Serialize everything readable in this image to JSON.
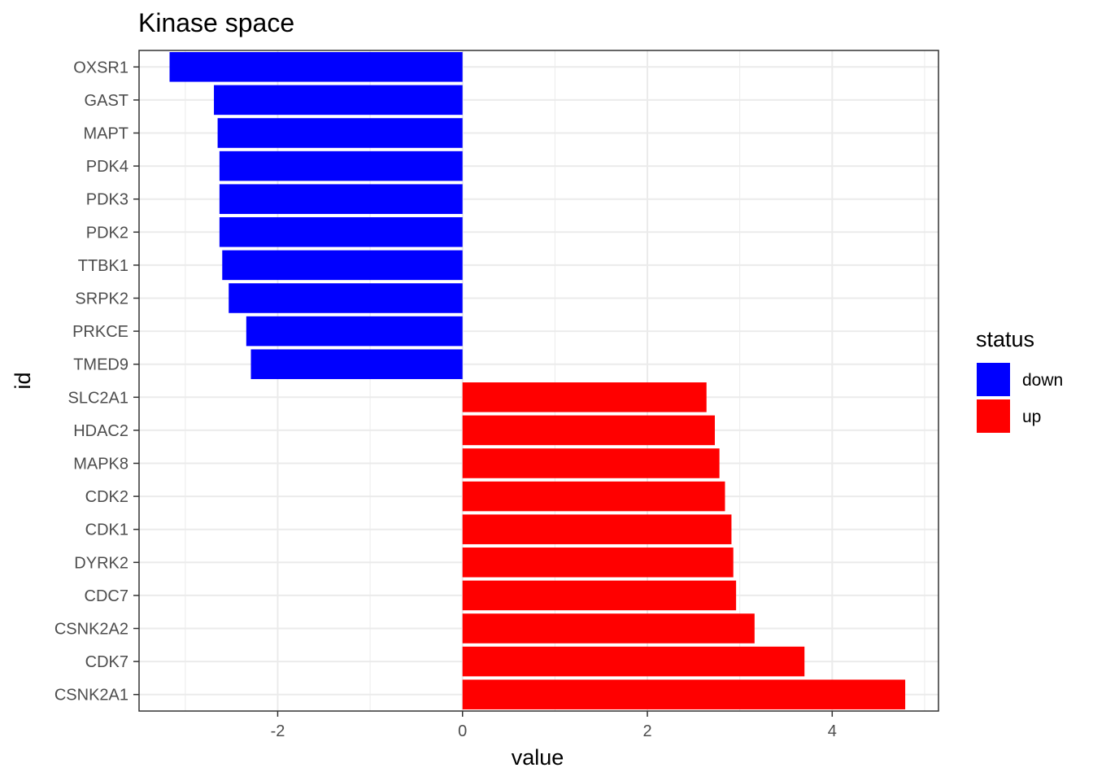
{
  "chart_data": {
    "type": "bar",
    "orientation": "horizontal",
    "title": "Kinase space",
    "xlabel": "value",
    "ylabel": "id",
    "xlim": [
      -3.5,
      5.15
    ],
    "xticks": [
      -2,
      0,
      2,
      4
    ],
    "xtick_labels": [
      "-2",
      "0",
      "2",
      "4"
    ],
    "grid": true,
    "legend": {
      "title": "status",
      "placement": "right",
      "entries": [
        {
          "label": "down",
          "color": "#0000ff"
        },
        {
          "label": "up",
          "color": "#ff0000"
        }
      ]
    },
    "categories": [
      "OXSR1",
      "GAST",
      "MAPT",
      "PDK4",
      "PDK3",
      "PDK2",
      "TTBK1",
      "SRPK2",
      "PRKCE",
      "TMED9",
      "SLC2A1",
      "HDAC2",
      "MAPK8",
      "CDK2",
      "CDK1",
      "DYRK2",
      "CDC7",
      "CSNK2A2",
      "CDK7",
      "CSNK2A1"
    ],
    "values": [
      -3.17,
      -2.69,
      -2.65,
      -2.63,
      -2.63,
      -2.63,
      -2.6,
      -2.53,
      -2.34,
      -2.29,
      2.64,
      2.73,
      2.78,
      2.84,
      2.91,
      2.93,
      2.96,
      3.16,
      3.7,
      4.79
    ],
    "status": [
      "down",
      "down",
      "down",
      "down",
      "down",
      "down",
      "down",
      "down",
      "down",
      "down",
      "up",
      "up",
      "up",
      "up",
      "up",
      "up",
      "up",
      "up",
      "up",
      "up"
    ]
  }
}
